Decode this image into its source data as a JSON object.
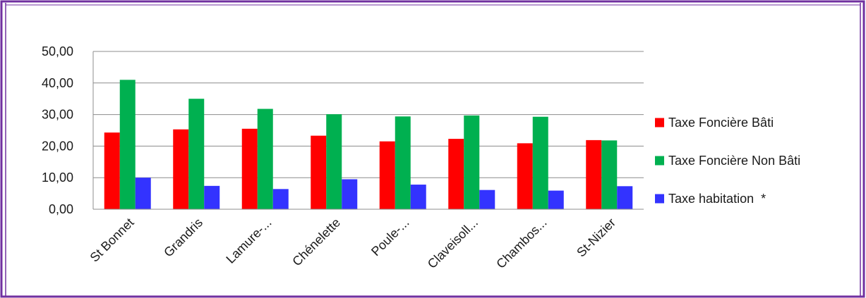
{
  "chart_data": {
    "type": "bar",
    "categories": [
      "St Bonnet",
      "Grandris",
      "Lamure-...",
      "Chénelette",
      "Poule-...",
      "Claveisoll...",
      "Chambos...",
      "St-Nizier"
    ],
    "series": [
      {
        "name": "Taxe Foncière Bâti",
        "color": "#ff0000",
        "values": [
          24.3,
          25.3,
          25.5,
          23.3,
          21.5,
          22.3,
          20.9,
          21.9
        ]
      },
      {
        "name": "Taxe Foncière Non Bâti",
        "color": "#00b050",
        "values": [
          41.0,
          35.0,
          31.8,
          30.1,
          29.4,
          29.7,
          29.3,
          21.8
        ]
      },
      {
        "name": "Taxe habitation  *",
        "color": "#3333ff",
        "values": [
          10.0,
          7.4,
          6.4,
          9.5,
          7.8,
          6.1,
          5.9,
          7.3
        ]
      }
    ],
    "yticks": [
      "0,00",
      "10,00",
      "20,00",
      "30,00",
      "40,00",
      "50,00"
    ],
    "ylim": [
      0,
      50
    ],
    "grid": true,
    "legend_position": "right",
    "title": "",
    "xlabel": "",
    "ylabel": ""
  },
  "frame": {
    "border_color": "#7030a0"
  }
}
